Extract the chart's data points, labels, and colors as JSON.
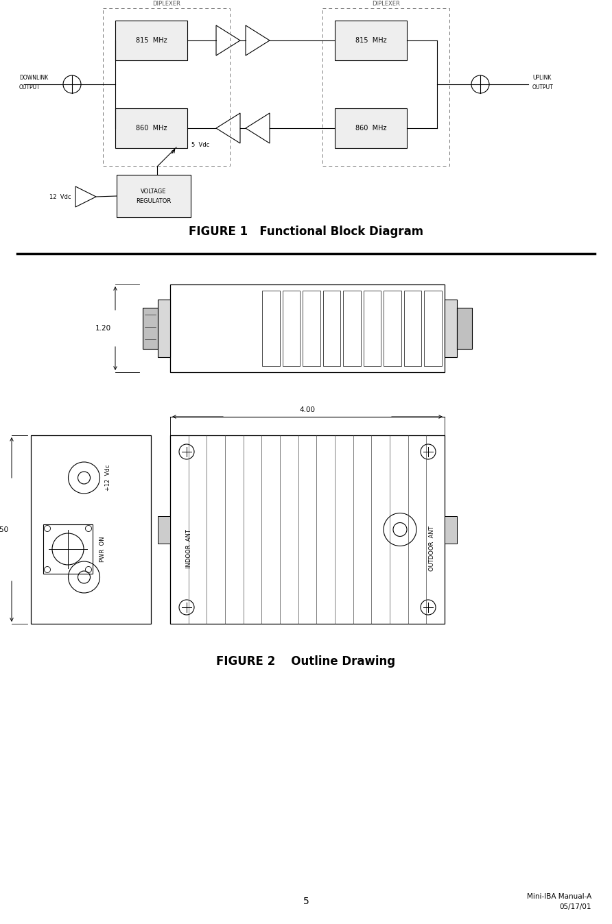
{
  "fig1_title": "FIGURE 1   Functional Block Diagram",
  "fig2_title": "FIGURE 2    Outline Drawing",
  "page_number": "5",
  "footer_right_line1": "Mini-IBA Manual-A",
  "footer_right_line2": "05/17/01",
  "bg_color": "#ffffff",
  "line_color": "#000000"
}
